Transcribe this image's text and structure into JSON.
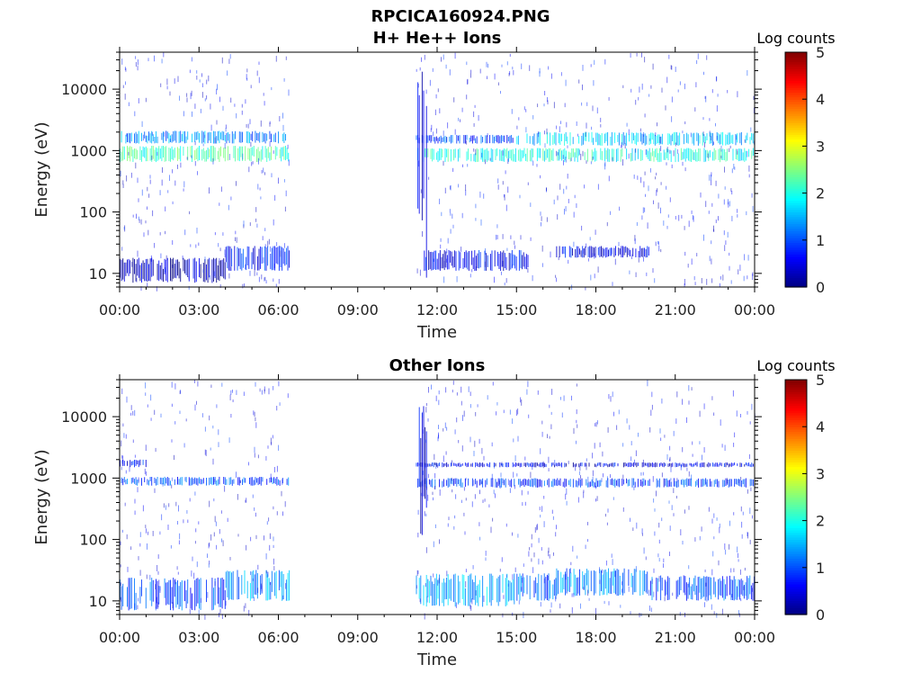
{
  "figure_title": "RPCICA160924.PNG",
  "colorbar": {
    "label": "Log counts",
    "ticks": [
      "0",
      "1",
      "2",
      "3",
      "4",
      "5"
    ],
    "range": [
      0,
      5
    ],
    "colormap": "jet"
  },
  "chart_data": [
    {
      "type": "heatmap",
      "title": "H+ He++ Ions",
      "xlabel": "Time",
      "ylabel": "Energy (eV)",
      "x_ticks": [
        "00:00",
        "03:00",
        "06:00",
        "09:00",
        "12:00",
        "15:00",
        "18:00",
        "21:00",
        "00:00"
      ],
      "y_ticks": [
        "10",
        "100",
        "1000",
        "10000"
      ],
      "ylog": true,
      "ylim": [
        6,
        40000
      ],
      "xlim_hours": [
        0,
        24
      ],
      "data_gap_hours": [
        6.4,
        11.2
      ],
      "bands": [
        {
          "t_start": 0,
          "t_end": 6.4,
          "e_low": 650,
          "e_high": 1200,
          "log_counts": 2.2
        },
        {
          "t_start": 0,
          "t_end": 6.4,
          "e_low": 1300,
          "e_high": 2100,
          "log_counts": 1.3
        },
        {
          "t_start": 11.2,
          "t_end": 24,
          "e_low": 650,
          "e_high": 1100,
          "log_counts": 2.0
        },
        {
          "t_start": 15.0,
          "t_end": 24,
          "e_low": 1200,
          "e_high": 2000,
          "log_counts": 1.6
        },
        {
          "t_start": 11.2,
          "t_end": 15.0,
          "e_low": 1300,
          "e_high": 1800,
          "log_counts": 0.9
        },
        {
          "t_start": 4.0,
          "t_end": 6.4,
          "e_low": 11,
          "e_high": 28,
          "log_counts": 0.8
        },
        {
          "t_start": 11.5,
          "t_end": 15.5,
          "e_low": 11,
          "e_high": 24,
          "log_counts": 0.6
        },
        {
          "t_start": 16.5,
          "t_end": 20.0,
          "e_low": 18,
          "e_high": 28,
          "log_counts": 0.6
        },
        {
          "t_start": 0,
          "t_end": 4.0,
          "e_low": 7,
          "e_high": 18,
          "log_counts": 0.3
        },
        {
          "t_start": 11.2,
          "t_end": 11.6,
          "e_low": 7,
          "e_high": 22000,
          "log_counts": 0.5
        }
      ]
    },
    {
      "type": "heatmap",
      "title": "Other Ions",
      "xlabel": "Time",
      "ylabel": "Energy (eV)",
      "x_ticks": [
        "00:00",
        "03:00",
        "06:00",
        "09:00",
        "12:00",
        "15:00",
        "18:00",
        "21:00",
        "00:00"
      ],
      "y_ticks": [
        "10",
        "100",
        "1000",
        "10000"
      ],
      "ylog": true,
      "ylim": [
        6,
        40000
      ],
      "xlim_hours": [
        0,
        24
      ],
      "data_gap_hours": [
        6.4,
        11.2
      ],
      "bands": [
        {
          "t_start": 0,
          "t_end": 6.4,
          "e_low": 750,
          "e_high": 1050,
          "log_counts": 1.0
        },
        {
          "t_start": 0,
          "t_end": 1.0,
          "e_low": 1500,
          "e_high": 2000,
          "log_counts": 0.7
        },
        {
          "t_start": 11.2,
          "t_end": 24,
          "e_low": 700,
          "e_high": 1000,
          "log_counts": 0.9
        },
        {
          "t_start": 11.2,
          "t_end": 24,
          "e_low": 1500,
          "e_high": 1800,
          "log_counts": 0.5
        },
        {
          "t_start": 0,
          "t_end": 4.0,
          "e_low": 7,
          "e_high": 24,
          "log_counts": 1.0
        },
        {
          "t_start": 4.0,
          "t_end": 6.4,
          "e_low": 10,
          "e_high": 32,
          "log_counts": 1.4
        },
        {
          "t_start": 11.2,
          "t_end": 15.0,
          "e_low": 8,
          "e_high": 28,
          "log_counts": 1.5
        },
        {
          "t_start": 15.0,
          "t_end": 16.5,
          "e_low": 10,
          "e_high": 28,
          "log_counts": 1.1
        },
        {
          "t_start": 16.5,
          "t_end": 20.0,
          "e_low": 12,
          "e_high": 34,
          "log_counts": 1.3
        },
        {
          "t_start": 20.0,
          "t_end": 24,
          "e_low": 10,
          "e_high": 26,
          "log_counts": 1.0
        },
        {
          "t_start": 11.2,
          "t_end": 11.6,
          "e_low": 100,
          "e_high": 15000,
          "log_counts": 0.4
        }
      ]
    }
  ]
}
